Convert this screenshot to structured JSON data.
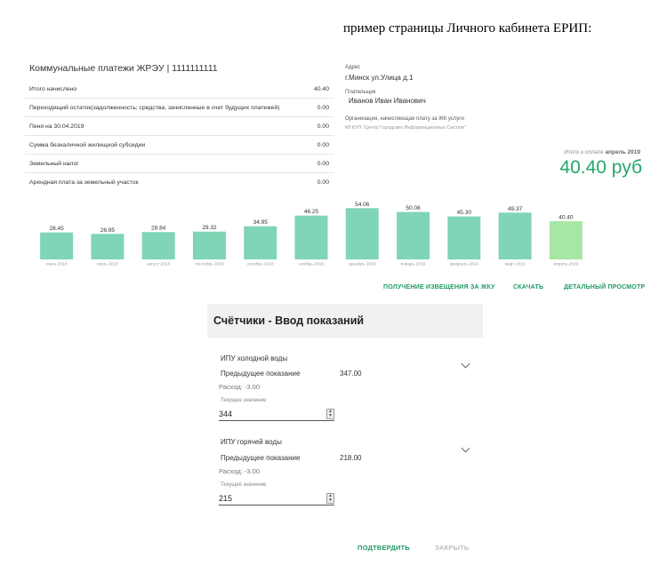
{
  "caption": "пример страницы Личного кабинета ЕРИП:",
  "account": {
    "title": "Коммунальные платежи ЖРЭУ | 1111111111",
    "rows": [
      {
        "label": "Итого начислено",
        "value": "40.40"
      },
      {
        "label": "Переходящий остаток(задолженность; средства, зачисленные в счет будущих платежей)",
        "value": "0.00"
      },
      {
        "label": "Пеня на 30.04.2019",
        "value": "0.00"
      },
      {
        "label": "Сумма безналичной жилищной субсидии",
        "value": "0.00"
      },
      {
        "label": "Земельный налог",
        "value": "0.00"
      },
      {
        "label": "Арендная плата за земельный участок",
        "value": "0.00"
      }
    ]
  },
  "info": {
    "address_label": "Адрес",
    "address": "г.Минск ул.Улица д.1",
    "payer_label": "Плательщик",
    "payer": "Иванов Иван Иванович",
    "org_label": "Организация, начисляющая плату за ЖК услуги",
    "org": "МГКУП \"Центр Городских Информационных Систем\"",
    "total_caption": "Итого к оплате",
    "total_month": "апрель 2019",
    "total_value": "40.40 руб"
  },
  "colors": {
    "accent": "#24a86b",
    "bar": "#7fd5b5",
    "bar_current": "#a8e6a3"
  },
  "chart_data": {
    "type": "bar",
    "categories": [
      "июнь 2018",
      "июль 2018",
      "август 2018",
      "сентябрь 2018",
      "октябрь 2018",
      "ноябрь 2018",
      "декабрь 2018",
      "январь 2019",
      "февраль 2019",
      "март 2019",
      "апрель 2019"
    ],
    "values": [
      28.45,
      26.95,
      28.84,
      29.32,
      34.95,
      46.25,
      54.06,
      50.08,
      45.3,
      49.37,
      40.4
    ],
    "labels": [
      "28.45",
      "26.95",
      "28.84",
      "29.32",
      "34.95",
      "46.25",
      "54.06",
      "50.08",
      "45.30",
      "49.37",
      "40.40"
    ],
    "highlight_index": 10,
    "ylim": [
      0,
      60
    ]
  },
  "links": {
    "notice": "ПОЛУЧЕНИЕ ИЗВЕЩЕНИЯ ЗА ЖКУ",
    "download": "СКАЧАТЬ",
    "details": "ДЕТАЛЬНЫЙ ПРОСМОТР"
  },
  "meters": {
    "title": "Счётчики - Ввод показаний",
    "items": [
      {
        "name": "ИПУ холодной воды",
        "prev_label": "Предыдущее показание",
        "prev_value": "347.00",
        "consumption": "Расход: -3.00",
        "current_label": "Текущее значение",
        "current_value": "344"
      },
      {
        "name": "ИПУ горячей воды",
        "prev_label": "Предыдущее показание",
        "prev_value": "218.00",
        "consumption": "Расход: -3.00",
        "current_label": "Текущее значение",
        "current_value": "215"
      }
    ],
    "confirm": "ПОДТВЕРДИТЬ",
    "close": "ЗАКРЫТЬ"
  }
}
